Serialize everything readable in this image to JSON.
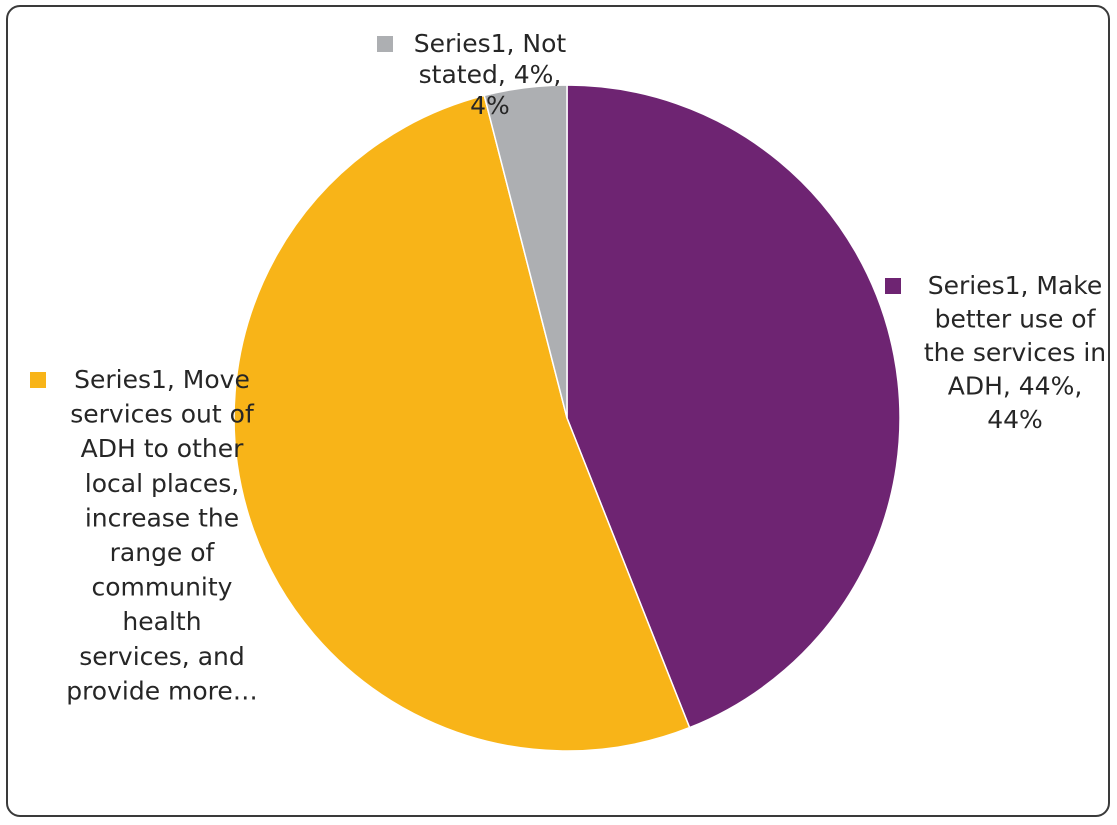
{
  "chart_data": {
    "type": "pie",
    "series_name": "Series1",
    "slices": [
      {
        "category": "Make better use of the services in ADH",
        "value": 44,
        "value_label": "44%",
        "percent_label": "44%",
        "color": "#6e2472",
        "label_lines": [
          "Series1, Make",
          "better use of",
          "the services in",
          "ADH, 44%,",
          "44%"
        ]
      },
      {
        "category": "Move services out of ADH to other local places, increase the range of community health services, and provide more…",
        "value": 52,
        "value_label": "52%",
        "percent_label": "52%",
        "color": "#f8b418",
        "label_lines": [
          "Series1, Move",
          "services out of",
          "ADH to other",
          "local places,",
          "increase the",
          "range of",
          "community",
          "health",
          "services, and",
          "provide more…"
        ]
      },
      {
        "category": "Not stated",
        "value": 4,
        "value_label": "4%",
        "percent_label": "4%",
        "color": "#adafb2",
        "label_lines": [
          "Series1, Not",
          "stated, 4%,",
          "4%"
        ]
      }
    ],
    "start_angle": "12 o'clock",
    "direction": "clockwise",
    "legend": "none",
    "title": ""
  }
}
